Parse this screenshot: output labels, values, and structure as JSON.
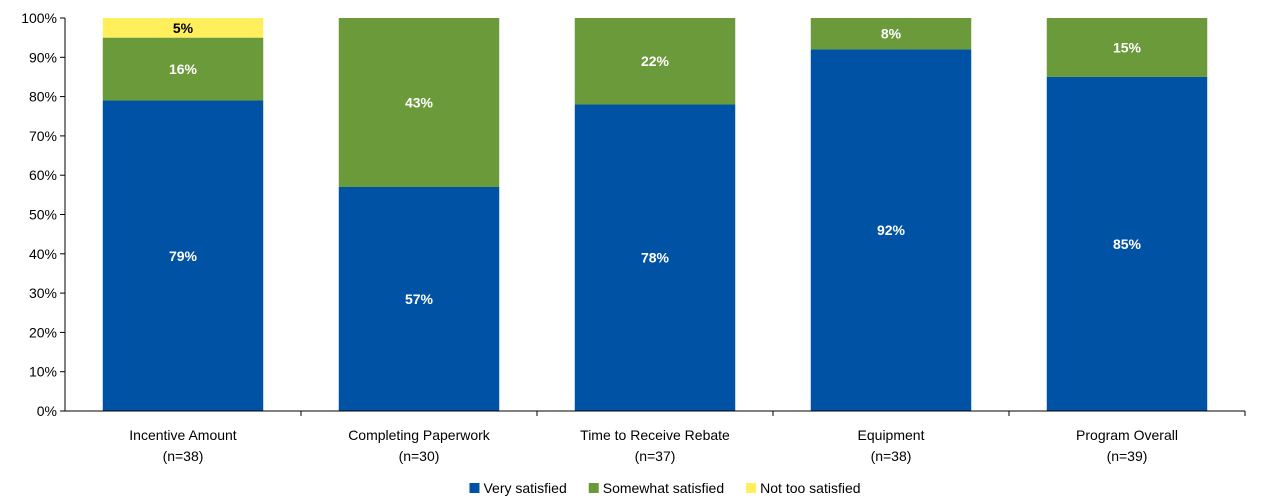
{
  "chart_data": {
    "type": "bar",
    "stacked": true,
    "title": "",
    "xlabel": "",
    "ylabel": "",
    "ylim": [
      0,
      100
    ],
    "yticks": [
      "0%",
      "10%",
      "20%",
      "30%",
      "40%",
      "50%",
      "60%",
      "70%",
      "80%",
      "90%",
      "100%"
    ],
    "y_tick_values": [
      0,
      10,
      20,
      30,
      40,
      50,
      60,
      70,
      80,
      90,
      100
    ],
    "grid": false,
    "legend_position": "bottom",
    "categories": [
      {
        "name": "Incentive Amount",
        "n": "(n=38)"
      },
      {
        "name": "Completing Paperwork",
        "n": "(n=30)"
      },
      {
        "name": "Time to Receive Rebate",
        "n": "(n=37)"
      },
      {
        "name": "Equipment",
        "n": "(n=38)"
      },
      {
        "name": "Program Overall",
        "n": "(n=39)"
      }
    ],
    "series": [
      {
        "name": "Very satisfied",
        "color": "#0053a4",
        "label_color": "#ffffff",
        "values": [
          79,
          57,
          78,
          92,
          85
        ],
        "labels": [
          "79%",
          "57%",
          "78%",
          "92%",
          "85%"
        ]
      },
      {
        "name": "Somewhat satisfied",
        "color": "#6a9a3a",
        "label_color": "#ffffff",
        "values": [
          16,
          43,
          22,
          8,
          15
        ],
        "labels": [
          "16%",
          "43%",
          "22%",
          "8%",
          "15%"
        ]
      },
      {
        "name": "Not too satisfied",
        "color": "#ffef5c",
        "label_color": "#000000",
        "values": [
          5,
          0,
          0,
          0,
          0
        ],
        "labels": [
          "5%",
          "",
          "",
          "",
          ""
        ]
      }
    ]
  }
}
